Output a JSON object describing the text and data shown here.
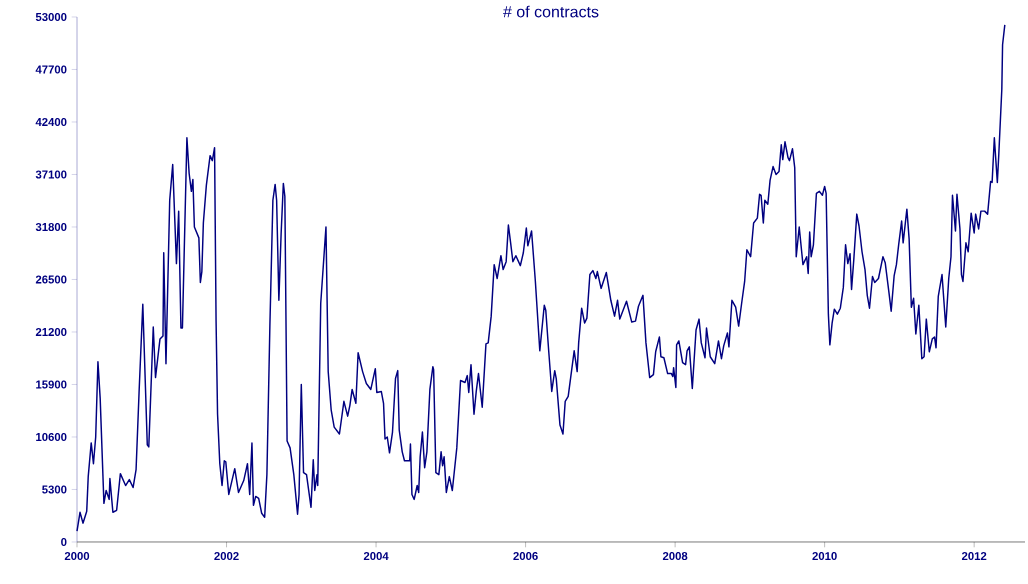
{
  "chart_data": {
    "type": "line",
    "title": "# of contracts",
    "xlim": [
      2000,
      2012.68
    ],
    "xticks": [
      2000,
      2002,
      2004,
      2006,
      2008,
      2010,
      2012
    ],
    "ylim": [
      0,
      53000
    ],
    "yticks": [
      0,
      5300,
      10600,
      15900,
      21200,
      26500,
      31800,
      37100,
      42400,
      47700,
      53000
    ],
    "x": [
      2000.0,
      2000.04,
      2000.08,
      2000.13,
      2000.15,
      2000.19,
      2000.22,
      2000.25,
      2000.28,
      2000.31,
      2000.36,
      2000.39,
      2000.43,
      2000.44,
      2000.48,
      2000.53,
      2000.58,
      2000.65,
      2000.7,
      2000.75,
      2000.79,
      2000.83,
      2000.88,
      2000.94,
      2000.96,
      2001.02,
      2001.05,
      2001.11,
      2001.15,
      2001.16,
      2001.19,
      2001.24,
      2001.28,
      2001.33,
      2001.36,
      2001.39,
      2001.41,
      2001.47,
      2001.5,
      2001.53,
      2001.55,
      2001.57,
      2001.63,
      2001.65,
      2001.67,
      2001.69,
      2001.73,
      2001.78,
      2001.81,
      2001.84,
      2001.86,
      2001.88,
      2001.91,
      2001.94,
      2001.97,
      2001.99,
      2002.03,
      2002.11,
      2002.16,
      2002.23,
      2002.28,
      2002.31,
      2002.34,
      2002.36,
      2002.39,
      2002.43,
      2002.47,
      2002.51,
      2002.54,
      2002.58,
      2002.62,
      2002.65,
      2002.67,
      2002.7,
      2002.73,
      2002.76,
      2002.78,
      2002.81,
      2002.85,
      2002.9,
      2002.95,
      2002.97,
      2003.0,
      2003.03,
      2003.07,
      2003.13,
      2003.16,
      2003.18,
      2003.21,
      2003.22,
      2003.26,
      2003.33,
      2003.36,
      2003.4,
      2003.44,
      2003.51,
      2003.57,
      2003.62,
      2003.65,
      2003.68,
      2003.73,
      2003.76,
      2003.82,
      2003.87,
      2003.93,
      2003.99,
      2004.01,
      2004.07,
      2004.1,
      2004.12,
      2004.15,
      2004.18,
      2004.22,
      2004.26,
      2004.29,
      2004.31,
      2004.35,
      2004.38,
      2004.45,
      2004.46,
      2004.48,
      2004.51,
      2004.55,
      2004.57,
      2004.59,
      2004.62,
      2004.65,
      2004.68,
      2004.72,
      2004.76,
      2004.77,
      2004.8,
      2004.84,
      2004.87,
      2004.89,
      2004.91,
      2004.94,
      2004.98,
      2005.02,
      2005.08,
      2005.13,
      2005.19,
      2005.22,
      2005.24,
      2005.27,
      2005.31,
      2005.34,
      2005.37,
      2005.42,
      2005.47,
      2005.5,
      2005.54,
      2005.58,
      2005.62,
      2005.67,
      2005.7,
      2005.74,
      2005.77,
      2005.8,
      2005.83,
      2005.87,
      2005.93,
      2005.97,
      2006.01,
      2006.03,
      2006.08,
      2006.13,
      2006.19,
      2006.25,
      2006.27,
      2006.31,
      2006.35,
      2006.39,
      2006.41,
      2006.46,
      2006.5,
      2006.53,
      2006.57,
      2006.65,
      2006.69,
      2006.71,
      2006.75,
      2006.79,
      2006.82,
      2006.86,
      2006.9,
      2006.94,
      2006.96,
      2007.01,
      2007.08,
      2007.14,
      2007.19,
      2007.23,
      2007.26,
      2007.35,
      2007.42,
      2007.47,
      2007.51,
      2007.57,
      2007.61,
      2007.66,
      2007.71,
      2007.74,
      2007.79,
      2007.81,
      2007.85,
      2007.9,
      2007.95,
      2007.97,
      2007.98,
      2008.01,
      2008.02,
      2008.05,
      2008.1,
      2008.14,
      2008.16,
      2008.19,
      2008.23,
      2008.28,
      2008.32,
      2008.35,
      2008.4,
      2008.42,
      2008.47,
      2008.53,
      2008.58,
      2008.62,
      2008.65,
      2008.7,
      2008.72,
      2008.76,
      2008.81,
      2008.85,
      2008.89,
      2008.93,
      2008.96,
      2009.01,
      2009.05,
      2009.1,
      2009.13,
      2009.15,
      2009.18,
      2009.2,
      2009.24,
      2009.27,
      2009.31,
      2009.35,
      2009.39,
      2009.42,
      2009.44,
      2009.47,
      2009.51,
      2009.53,
      2009.57,
      2009.6,
      2009.62,
      2009.66,
      2009.71,
      2009.76,
      2009.78,
      2009.8,
      2009.82,
      2009.85,
      2009.89,
      2009.93,
      2009.97,
      2010.0,
      2010.02,
      2010.05,
      2010.07,
      2010.1,
      2010.13,
      2010.17,
      2010.21,
      2010.25,
      2010.28,
      2010.31,
      2010.34,
      2010.36,
      2010.39,
      2010.43,
      2010.46,
      2010.5,
      2010.54,
      2010.57,
      2010.6,
      2010.64,
      2010.67,
      2010.72,
      2010.78,
      2010.81,
      2010.86,
      2010.89,
      2010.93,
      2010.96,
      2010.99,
      2011.03,
      2011.05,
      2011.1,
      2011.13,
      2011.16,
      2011.19,
      2011.22,
      2011.26,
      2011.3,
      2011.33,
      2011.36,
      2011.4,
      2011.44,
      2011.47,
      2011.49,
      2011.52,
      2011.57,
      2011.62,
      2011.66,
      2011.69,
      2011.71,
      2011.75,
      2011.77,
      2011.81,
      2011.83,
      2011.85,
      2011.89,
      2011.92,
      2011.96,
      2012.0,
      2012.02,
      2012.06,
      2012.09,
      2012.14,
      2012.18,
      2012.22,
      2012.24,
      2012.27,
      2012.31,
      2012.33,
      2012.37,
      2012.38,
      2012.41
    ],
    "series": [
      {
        "color": "#000080",
        "values": [
          1100,
          3000,
          1900,
          3100,
          6600,
          10000,
          7900,
          10600,
          18200,
          14500,
          3900,
          5200,
          4300,
          6400,
          3000,
          3200,
          6900,
          5700,
          6300,
          5500,
          7300,
          15100,
          24000,
          9800,
          9600,
          21700,
          16600,
          20500,
          20800,
          29200,
          18000,
          34500,
          38100,
          28100,
          33400,
          21600,
          21600,
          40800,
          37200,
          35400,
          36600,
          31800,
          30700,
          26200,
          27300,
          32200,
          36000,
          39000,
          38500,
          39800,
          22300,
          12900,
          7900,
          5700,
          8200,
          8100,
          4800,
          7400,
          5000,
          6200,
          7900,
          4800,
          10000,
          3700,
          4600,
          4400,
          2900,
          2500,
          6800,
          21900,
          34500,
          36100,
          34500,
          24400,
          31100,
          36200,
          34900,
          10200,
          9500,
          6800,
          2800,
          4800,
          15900,
          7000,
          6800,
          3500,
          8300,
          5200,
          6800,
          5700,
          24100,
          31800,
          17200,
          13300,
          11600,
          10900,
          14200,
          12700,
          13800,
          15400,
          14000,
          19100,
          17200,
          16000,
          15400,
          17500,
          15100,
          15200,
          14000,
          10400,
          10600,
          9000,
          11100,
          16500,
          17300,
          11300,
          9100,
          8200,
          8200,
          9900,
          4800,
          4300,
          5700,
          5000,
          8600,
          11100,
          7500,
          9100,
          15400,
          17700,
          17400,
          7000,
          6800,
          9100,
          7700,
          8600,
          5000,
          6600,
          5200,
          9500,
          16300,
          16100,
          16800,
          15100,
          17900,
          12900,
          15200,
          17000,
          13600,
          20000,
          20100,
          22800,
          28000,
          26600,
          28900,
          27500,
          28300,
          32000,
          30200,
          28300,
          28900,
          27900,
          29200,
          31700,
          29900,
          31400,
          26400,
          19300,
          23900,
          23400,
          19200,
          15200,
          17300,
          16500,
          11800,
          10900,
          14200,
          14700,
          19300,
          17200,
          20100,
          23600,
          22100,
          22600,
          27000,
          27400,
          26600,
          27300,
          25600,
          27200,
          24400,
          22800,
          24400,
          22500,
          24300,
          22200,
          22300,
          23800,
          24900,
          20100,
          16600,
          16900,
          19200,
          20700,
          18700,
          18600,
          17000,
          17000,
          16700,
          17600,
          15600,
          19900,
          20300,
          18100,
          17900,
          19300,
          19700,
          15500,
          21400,
          22500,
          20100,
          18600,
          21600,
          18700,
          18000,
          20300,
          18500,
          19800,
          21100,
          19700,
          24400,
          23700,
          21800,
          24100,
          26300,
          29500,
          28800,
          32200,
          32700,
          35100,
          35000,
          32200,
          34500,
          34100,
          36500,
          37900,
          37100,
          37400,
          40100,
          38600,
          40400,
          38800,
          38500,
          39700,
          37800,
          28800,
          31800,
          28000,
          28800,
          27100,
          31300,
          28800,
          30000,
          35200,
          35400,
          35000,
          35900,
          35200,
          23000,
          19900,
          22100,
          23500,
          23000,
          23600,
          25700,
          30000,
          28100,
          29100,
          25500,
          28500,
          33100,
          31900,
          29300,
          27500,
          24900,
          23600,
          26800,
          26200,
          26600,
          28800,
          28200,
          25200,
          23300,
          26900,
          28000,
          30000,
          32400,
          30200,
          33600,
          30600,
          23700,
          24600,
          21000,
          23900,
          18500,
          18700,
          22500,
          19200,
          20500,
          20700,
          19600,
          24800,
          27000,
          21700,
          26600,
          28800,
          35000,
          31400,
          35100,
          31600,
          27000,
          26300,
          30200,
          29300,
          33200,
          31200,
          33100,
          31600,
          33400,
          33400,
          33100,
          36400,
          36300,
          40800,
          36300,
          39200,
          45700,
          50200,
          52200
        ]
      }
    ]
  }
}
